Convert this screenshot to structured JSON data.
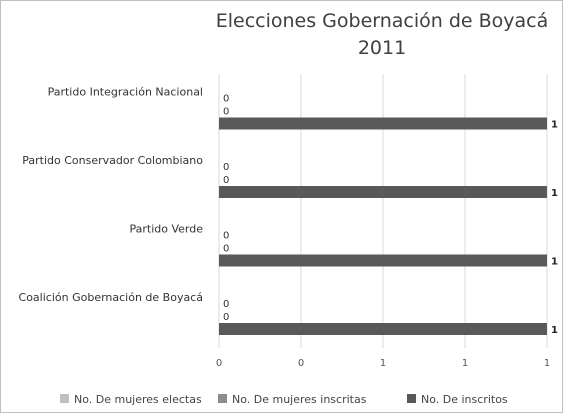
{
  "chart_data": {
    "type": "bar",
    "orientation": "horizontal",
    "title_lines": [
      "Elecciones Gobernación de Boyacá",
      "2011"
    ],
    "categories": [
      "Partido Integración Nacional",
      "Partido Conservador Colombiano",
      "Partido Verde",
      "Coalición Gobernación de Boyacá"
    ],
    "series": [
      {
        "name": "No. De mujeres electas",
        "values": [
          0,
          0,
          0,
          0
        ],
        "color": "#bfbfbf"
      },
      {
        "name": "No. De mujeres inscritas",
        "values": [
          0,
          0,
          0,
          0
        ],
        "color": "#8c8c8c"
      },
      {
        "name": "No. De inscritos",
        "values": [
          1,
          1,
          1,
          1
        ],
        "color": "#595959"
      }
    ],
    "xlim": [
      0,
      1
    ],
    "x_ticks": [
      0,
      0.25,
      0.5,
      0.75,
      1
    ],
    "x_tick_labels": [
      "0",
      "0",
      "1",
      "1",
      "1"
    ],
    "grid": "vertical",
    "legend": "bottom"
  }
}
